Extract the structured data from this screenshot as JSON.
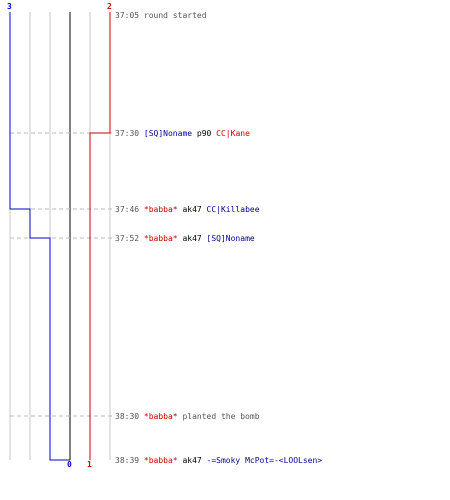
{
  "colors": {
    "team_blue": "#0000cc",
    "team_red": "#cc0000",
    "grid": "#c8c8c8",
    "zero_line": "#808080",
    "dashed": "#bbbbbb",
    "timestamp": "#555555"
  },
  "axis": {
    "top_left_label": "3",
    "top_right_label": "2",
    "bottom_zero_label": "0",
    "bottom_one_label": "1"
  },
  "events": [
    {
      "time": "37:05",
      "parts": [
        {
          "text": "round started",
          "color": "gray"
        }
      ]
    },
    {
      "time": "37:30",
      "parts": [
        {
          "text": "[SQ]Noname",
          "color": "blue"
        },
        {
          "text": " p90 ",
          "color": "black"
        },
        {
          "text": "CC|Kane",
          "color": "red"
        }
      ]
    },
    {
      "time": "37:46",
      "parts": [
        {
          "text": "*babba*",
          "color": "red"
        },
        {
          "text": " ak47 ",
          "color": "black"
        },
        {
          "text": "CC|Killabee",
          "color": "blue"
        }
      ]
    },
    {
      "time": "37:52",
      "parts": [
        {
          "text": "*babba*",
          "color": "red"
        },
        {
          "text": " ak47 ",
          "color": "black"
        },
        {
          "text": "[SQ]Noname",
          "color": "blue"
        }
      ]
    },
    {
      "time": "38:30",
      "parts": [
        {
          "text": "*babba*",
          "color": "red"
        },
        {
          "text": " planted the bomb",
          "color": "gray"
        }
      ]
    },
    {
      "time": "38:39",
      "parts": [
        {
          "text": "*babba*",
          "color": "red"
        },
        {
          "text": " ak47 ",
          "color": "black"
        },
        {
          "text": "-=Smoky McPot=-<LOOLsen>",
          "color": "blue"
        }
      ]
    }
  ]
}
